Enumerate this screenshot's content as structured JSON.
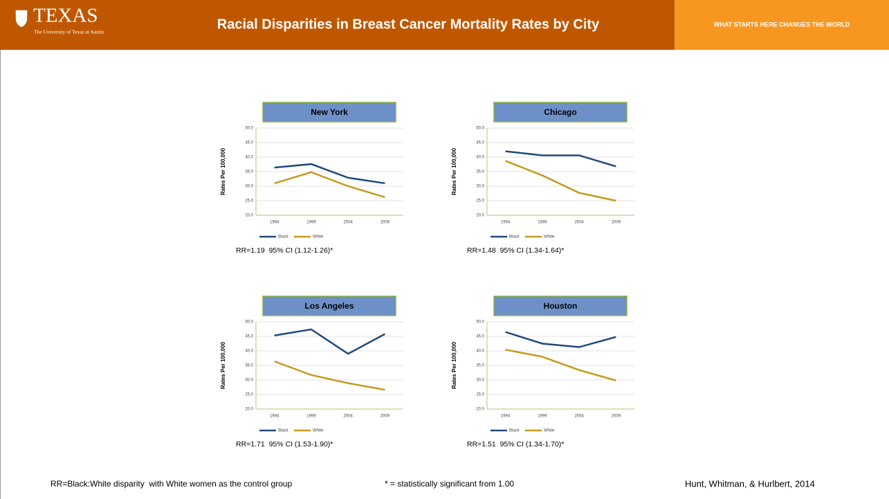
{
  "header": {
    "logo": "TEXAS",
    "logo_subtitle": "The University of Texas at Austin",
    "title": "Racial Disparities in Breast Cancer Mortality Rates by City",
    "tagline": "WHAT STARTS HERE CHANGES THE WORLD"
  },
  "chart_data": [
    {
      "type": "line",
      "title": "New York",
      "ylabel": "Rates Per 100,000",
      "categories": [
        "1994",
        "1999",
        "2004",
        "2009"
      ],
      "series": [
        {
          "name": "Black",
          "color": "#1f497d",
          "values": [
            36.4,
            37.6,
            32.9,
            31.0
          ]
        },
        {
          "name": "White",
          "color": "#c49a1c",
          "values": [
            31.0,
            34.8,
            30.0,
            26.2
          ]
        }
      ],
      "ylim": [
        20,
        50
      ],
      "yticks": [
        {
          "value": 20,
          "label": "20.0"
        },
        {
          "value": 25,
          "label": "25.0"
        },
        {
          "value": 30,
          "label": "30.0"
        },
        {
          "value": 35,
          "label": "35.0"
        },
        {
          "value": 40,
          "label": "40.0"
        },
        {
          "value": 45,
          "label": "45.0"
        },
        {
          "value": 50,
          "label": "50.0"
        }
      ],
      "grid": true,
      "legend": "bottom",
      "annotation": "RR=1.19  95% CI (1.12-1.26)*"
    },
    {
      "type": "line",
      "title": "Chicago",
      "ylabel": "Rates Per 100,000",
      "categories": [
        "1994",
        "1999",
        "2004",
        "2009"
      ],
      "series": [
        {
          "name": "Black",
          "color": "#1f497d",
          "values": [
            42.0,
            40.6,
            40.6,
            36.8
          ]
        },
        {
          "name": "White",
          "color": "#c49a1c",
          "values": [
            38.7,
            33.7,
            27.7,
            25.0
          ]
        }
      ],
      "ylim": [
        20,
        50
      ],
      "yticks": [
        {
          "value": 20,
          "label": "20.0"
        },
        {
          "value": 25,
          "label": "25.0"
        },
        {
          "value": 30,
          "label": "30.0"
        },
        {
          "value": 35,
          "label": "35.0"
        },
        {
          "value": 40,
          "label": "40.0"
        },
        {
          "value": 45,
          "label": "45.0"
        },
        {
          "value": 50,
          "label": "50.0"
        }
      ],
      "grid": true,
      "legend": "bottom",
      "annotation": "RR=1.48  95% CI (1.34-1.64)*"
    },
    {
      "type": "line",
      "title": "Los Angeles",
      "ylabel": "Rates Per 100,000",
      "categories": [
        "1994",
        "1999",
        "2004",
        "2009"
      ],
      "series": [
        {
          "name": "Black",
          "color": "#1f497d",
          "values": [
            45.3,
            47.4,
            39.0,
            45.8
          ]
        },
        {
          "name": "White",
          "color": "#c49a1c",
          "values": [
            36.4,
            31.7,
            28.9,
            26.6
          ]
        }
      ],
      "ylim": [
        20,
        50
      ],
      "yticks": [
        {
          "value": 20,
          "label": "20.0"
        },
        {
          "value": 25,
          "label": "25.0"
        },
        {
          "value": 30,
          "label": "30.0"
        },
        {
          "value": 35,
          "label": "35.0"
        },
        {
          "value": 40,
          "label": "40.0"
        },
        {
          "value": 45,
          "label": "45.0"
        },
        {
          "value": 50,
          "label": "50.0"
        }
      ],
      "grid": true,
      "legend": "bottom",
      "annotation": "RR=1.71  95% CI (1.53-1.90)*"
    },
    {
      "type": "line",
      "title": "Houston",
      "ylabel": "Rates Per 100,000",
      "categories": [
        "1994",
        "1999",
        "2004",
        "2009"
      ],
      "series": [
        {
          "name": "Black",
          "color": "#1f497d",
          "values": [
            46.5,
            42.5,
            41.3,
            44.8
          ]
        },
        {
          "name": "White",
          "color": "#c49a1c",
          "values": [
            40.4,
            38.0,
            33.4,
            29.8
          ]
        }
      ],
      "ylim": [
        20,
        50
      ],
      "yticks": [
        {
          "value": 20,
          "label": "20.0"
        },
        {
          "value": 25,
          "label": "25.0"
        },
        {
          "value": 30,
          "label": "30.0"
        },
        {
          "value": 35,
          "label": "35.0"
        },
        {
          "value": 40,
          "label": "40.0"
        },
        {
          "value": 45,
          "label": "45.0"
        },
        {
          "value": 50,
          "label": "50.0"
        }
      ],
      "grid": true,
      "legend": "bottom",
      "annotation": "RR=1.51  95% CI (1.34-1.70)*"
    }
  ],
  "footer": {
    "note": "RR=Black:White disparity  with White women as the control group",
    "significance": "* = statistically significant from 1.00",
    "citation": "Hunt, Whitman, & Hurlbert, 2014"
  }
}
